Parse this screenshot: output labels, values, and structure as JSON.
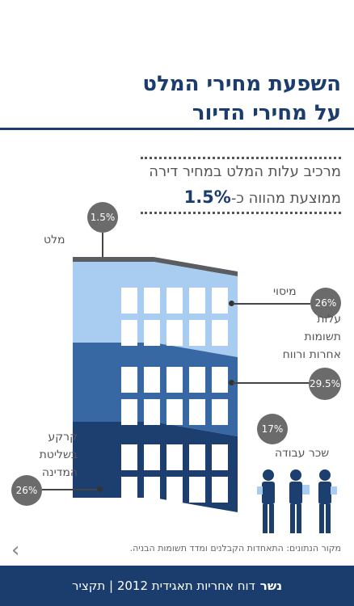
{
  "title": {
    "line1": "השפעת מחירי המלט",
    "line2": "על מחירי הדיור"
  },
  "subtitle": {
    "line1": "מרכיב עלות המלט במחיר דירה",
    "line2_prefix": "ממוצעת מהווה כ-",
    "line2_value": "1.5%"
  },
  "components": {
    "cement": {
      "label": "מלט",
      "value": "1.5%"
    },
    "finishing": {
      "label": "מיסוי",
      "value": "26%"
    },
    "other_costs": {
      "label_lines": [
        "עלות",
        "תשומות",
        "אחרות ורווח"
      ],
      "value": "29.5%"
    },
    "land": {
      "label_lines": [
        "קרקע",
        "בשליטת",
        "המדינה"
      ],
      "value": "26%"
    },
    "labor": {
      "label": "שכר עבודה",
      "value": "17%"
    }
  },
  "colors": {
    "brand": "#1b3d6e",
    "roof": "#5a5d61",
    "tier_top": "#a9cdf0",
    "tier_mid": "#3768a4",
    "tier_bottom": "#1d3f6f",
    "window": "#ffffff",
    "circle": "#6b6b6b"
  },
  "source": "מקור הנתונים: התאחדות הקבלנים ומדד תשומות הבניה.",
  "nav": {
    "prev_icon": "chevron-left-icon"
  },
  "footer": {
    "brand": "נשר",
    "text": "דוח אחריות תאגידית 2012 | תקציר"
  }
}
